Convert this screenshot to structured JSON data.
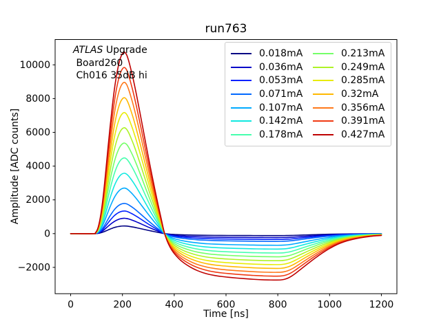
{
  "chart_data": {
    "type": "line",
    "title": "run763",
    "xlabel": "Time [ns]",
    "ylabel": "Amplitude [ADC counts]",
    "xlim": [
      -60,
      1260
    ],
    "ylim": [
      -3560,
      11500
    ],
    "x_ticks": [
      0,
      200,
      400,
      600,
      800,
      1000,
      1200
    ],
    "x_tick_labels": [
      "0",
      "200",
      "400",
      "600",
      "800",
      "1000",
      "1200"
    ],
    "y_ticks": [
      -2000,
      0,
      2000,
      4000,
      6000,
      8000,
      10000
    ],
    "y_tick_labels": [
      "−2000",
      "0",
      "2000",
      "4000",
      "6000",
      "8000",
      "10000"
    ],
    "grid": false,
    "legend": {
      "position": "upper right",
      "ncol": 2,
      "column_major": true
    },
    "annotation": {
      "line1_italic": "ATLAS",
      "line1_rest": " Upgrade",
      "line2": " Board260",
      "line3": " Ch016 35dB hi"
    },
    "series": [
      {
        "label": "0.018mA",
        "current_mA": 0.018,
        "color": "#000083",
        "peak_adc": 455,
        "undershoot_adc": -116
      },
      {
        "label": "0.036mA",
        "current_mA": 0.036,
        "color": "#0000C8",
        "peak_adc": 910,
        "undershoot_adc": -233
      },
      {
        "label": "0.053mA",
        "current_mA": 0.053,
        "color": "#0020FF",
        "peak_adc": 1340,
        "undershoot_adc": -342
      },
      {
        "label": "0.071mA",
        "current_mA": 0.071,
        "color": "#0068FF",
        "peak_adc": 1790,
        "undershoot_adc": -457
      },
      {
        "label": "0.107mA",
        "current_mA": 0.107,
        "color": "#00AAFF",
        "peak_adc": 2700,
        "undershoot_adc": -690
      },
      {
        "label": "0.142mA",
        "current_mA": 0.142,
        "color": "#0FE8E0",
        "peak_adc": 3580,
        "undershoot_adc": -915
      },
      {
        "label": "0.178mA",
        "current_mA": 0.178,
        "color": "#45FFAD",
        "peak_adc": 4490,
        "undershoot_adc": -1147
      },
      {
        "label": "0.213mA",
        "current_mA": 0.213,
        "color": "#74FF67",
        "peak_adc": 5370,
        "undershoot_adc": -1372
      },
      {
        "label": "0.249mA",
        "current_mA": 0.249,
        "color": "#AEF226",
        "peak_adc": 6280,
        "undershoot_adc": -1605
      },
      {
        "label": "0.285mA",
        "current_mA": 0.285,
        "color": "#E8EB05",
        "peak_adc": 7180,
        "undershoot_adc": -1835
      },
      {
        "label": "0.32mA",
        "current_mA": 0.32,
        "color": "#FFB800",
        "peak_adc": 8060,
        "undershoot_adc": -2059
      },
      {
        "label": "0.356mA",
        "current_mA": 0.356,
        "color": "#FF7819",
        "peak_adc": 8970,
        "undershoot_adc": -2292
      },
      {
        "label": "0.391mA",
        "current_mA": 0.391,
        "color": "#F03911",
        "peak_adc": 9850,
        "undershoot_adc": -2517
      },
      {
        "label": "0.427mA",
        "current_mA": 0.427,
        "color": "#BE0000",
        "peak_adc": 10760,
        "undershoot_adc": -2749
      }
    ],
    "pulse_shape_normalized": {
      "description": "Common bipolar shaper pulse, peak normalized to 1; each curve is this shape scaled by peak_adc. Baseline 0 to ~100 ns, peak at ~200 ns, zero crossing ~360 ns, undershoot plateau ~-0.256 until ~800 ns, recovery tail to ~1200 ns.",
      "t_ns": [
        0,
        88,
        96,
        104,
        112,
        120,
        128,
        136,
        144,
        152,
        160,
        168,
        176,
        184,
        192,
        200,
        208,
        216,
        224,
        232,
        242,
        254,
        266,
        278,
        290,
        302,
        314,
        326,
        338,
        350,
        361,
        372,
        384,
        396,
        410,
        424,
        440,
        456,
        472,
        490,
        510,
        532,
        556,
        582,
        610,
        640,
        672,
        706,
        740,
        772,
        796,
        812,
        826,
        840,
        854,
        868,
        884,
        900,
        916,
        932,
        948,
        964,
        982,
        1000,
        1020,
        1042,
        1066,
        1092,
        1120,
        1150,
        1180,
        1200
      ],
      "f": [
        0,
        0,
        0.005,
        0.025,
        0.07,
        0.14,
        0.235,
        0.35,
        0.47,
        0.585,
        0.69,
        0.785,
        0.862,
        0.922,
        0.966,
        0.991,
        0.999,
        0.985,
        0.952,
        0.908,
        0.848,
        0.766,
        0.678,
        0.588,
        0.497,
        0.408,
        0.322,
        0.238,
        0.157,
        0.08,
        0.01,
        -0.038,
        -0.075,
        -0.102,
        -0.126,
        -0.146,
        -0.164,
        -0.179,
        -0.192,
        -0.204,
        -0.2145,
        -0.2235,
        -0.2305,
        -0.236,
        -0.2405,
        -0.2445,
        -0.248,
        -0.2515,
        -0.254,
        -0.2553,
        -0.2557,
        -0.2549,
        -0.2515,
        -0.2445,
        -0.2335,
        -0.2195,
        -0.2015,
        -0.1835,
        -0.1655,
        -0.148,
        -0.131,
        -0.1145,
        -0.0975,
        -0.082,
        -0.0665,
        -0.0525,
        -0.0405,
        -0.031,
        -0.023,
        -0.0165,
        -0.012,
        -0.01
      ]
    }
  }
}
